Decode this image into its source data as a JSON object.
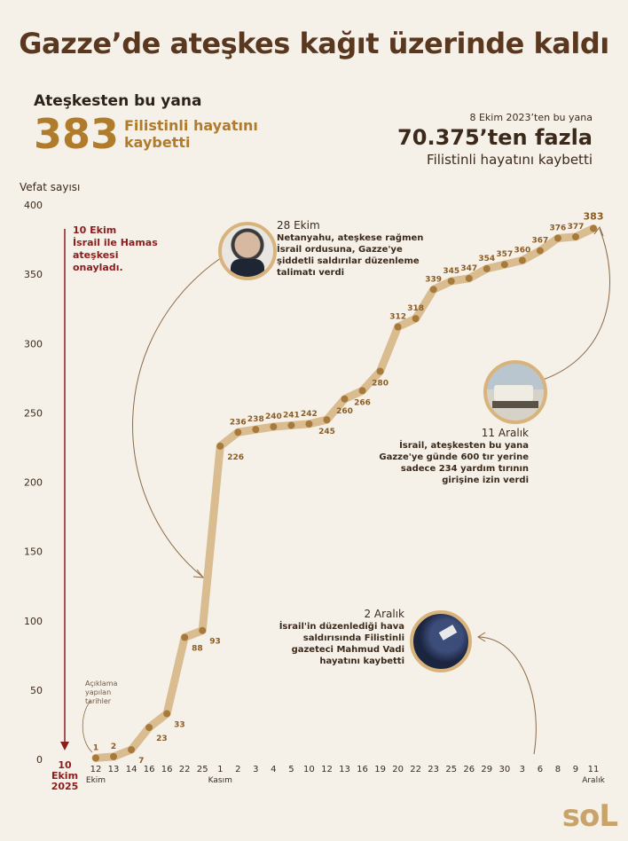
{
  "title": "Gazze’de ateşkes kağıt üzerinde kaldı",
  "summary": {
    "label": "Ateşkesten bu yana",
    "big_number": "383",
    "desc": "Filistinli hayatını kaybetti"
  },
  "total": {
    "since": "8 Ekim 2023’ten bu yana",
    "big": "70.375’ten fazla",
    "desc": "Filistinli hayatını kaybetti"
  },
  "ceasefire_note": {
    "date": "10 Ekim",
    "text": "İsrail ile Hamas ateşkesi onayladı.",
    "axis_label": [
      "10",
      "Ekim",
      "2025"
    ]
  },
  "annotations": {
    "oct28": {
      "date": "28 Ekim",
      "text": "Netanyahu, ateşkese rağmen İsrail ordusuna, Gazze'ye şiddetli saldırılar düzenleme talimatı verdi"
    },
    "dec11": {
      "date": "11 Aralık",
      "text": "İsrail, ateşkesten bu yana Gazze'ye günde 600 tır yerine sadece 234 yardım tırının girişine izin verdi"
    },
    "dec2": {
      "date": "2 Aralık",
      "text": "İsrail'in düzenlediği hava saldırısında Filistinli gazeteci Mahmud Vadi hayatını kaybetti"
    },
    "dates_note": "Açıklama yapılan tarihler"
  },
  "logo": "soL",
  "colors": {
    "line": "#d9bc8f",
    "point": "#a77a3c",
    "label": "#8a5c25",
    "ceasefire": "#8c1d1d",
    "accent": "#b07c2c"
  },
  "chart_data": {
    "type": "line",
    "title": "Gazze’de ateşkes kağıt üzerinde kaldı",
    "ylabel": "Vefat sayısı",
    "xlabel": "",
    "ylim": [
      0,
      400
    ],
    "yticks": [
      0,
      50,
      100,
      150,
      200,
      250,
      300,
      350,
      400
    ],
    "categories": [
      "12",
      "13",
      "14",
      "16",
      "16",
      "22",
      "25",
      "1",
      "2",
      "3",
      "4",
      "5",
      "10",
      "12",
      "13",
      "16",
      "19",
      "20",
      "22",
      "23",
      "25",
      "26",
      "29",
      "30",
      "3",
      "6",
      "8",
      "9",
      "11"
    ],
    "month_labels": [
      {
        "index": 0,
        "text": "Ekim"
      },
      {
        "index": 7,
        "text": "Kasım"
      },
      {
        "index": 28,
        "text": "Aralık"
      }
    ],
    "values": [
      1,
      2,
      7,
      23,
      33,
      88,
      93,
      226,
      236,
      238,
      240,
      241,
      242,
      245,
      260,
      266,
      280,
      312,
      318,
      339,
      345,
      347,
      354,
      357,
      360,
      367,
      376,
      377,
      383
    ],
    "grid": false
  }
}
